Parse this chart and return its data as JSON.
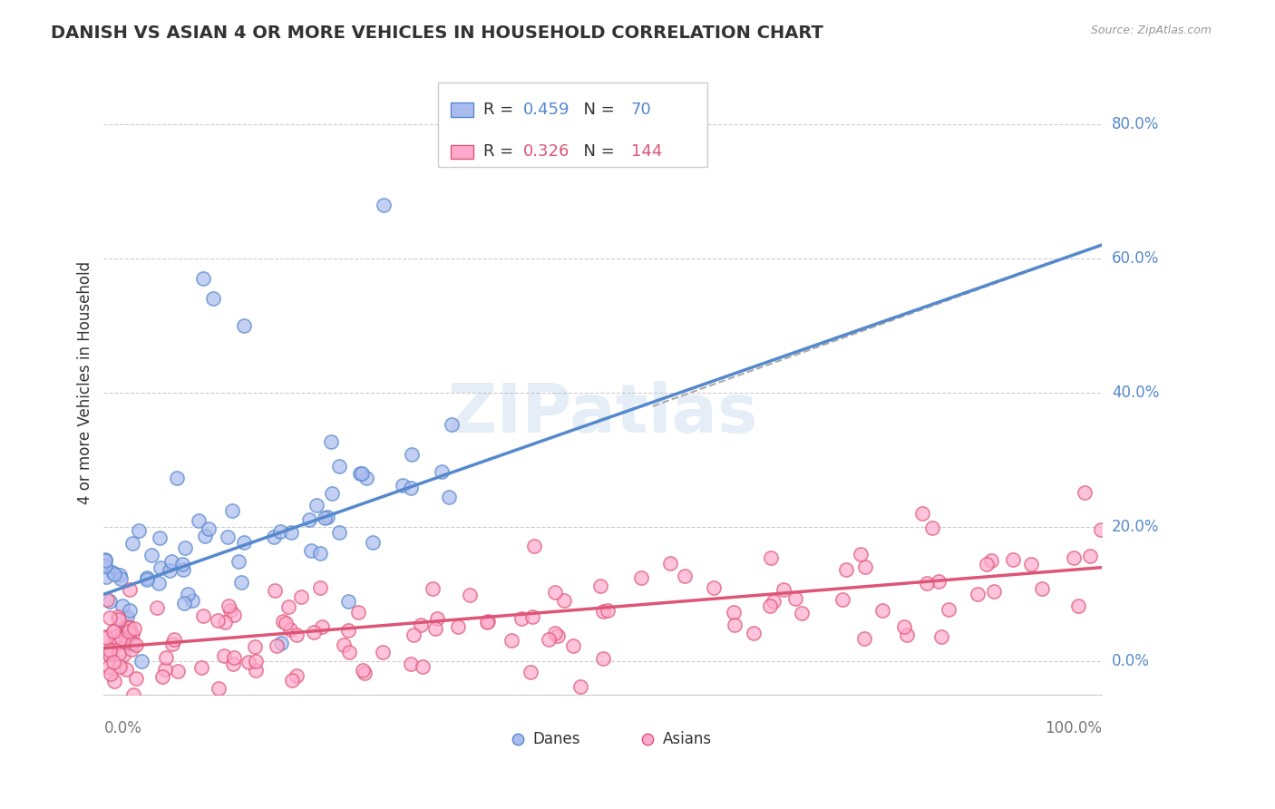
{
  "title": "DANISH VS ASIAN 4 OR MORE VEHICLES IN HOUSEHOLD CORRELATION CHART",
  "source": "Source: ZipAtlas.com",
  "ylabel": "4 or more Vehicles in Household",
  "background_color": "#ffffff",
  "grid_color": "#cccccc",
  "dane_color": "#5588cc",
  "dane_face": "#aabbee",
  "asian_color": "#dd5577",
  "asian_face": "#ffaacc",
  "watermark": "ZIPatlas",
  "xlim": [
    0,
    100
  ],
  "ylim": [
    -5,
    88
  ],
  "ytick_values": [
    0,
    20,
    40,
    60,
    80
  ],
  "ytick_labels": [
    "0.0%",
    "20.0%",
    "40.0%",
    "60.0%",
    "80.0%"
  ],
  "dane_R": 0.459,
  "dane_N": 70,
  "asian_R": 0.326,
  "asian_N": 144,
  "dane_reg_x0": 0,
  "dane_reg_y0": 10,
  "dane_reg_x1": 100,
  "dane_reg_y1": 62,
  "asian_reg_x0": 0,
  "asian_reg_y0": 2,
  "asian_reg_x1": 100,
  "asian_reg_y1": 14,
  "dash_x0": 55,
  "dash_y0": 38,
  "dash_x1": 100,
  "dash_y1": 62
}
